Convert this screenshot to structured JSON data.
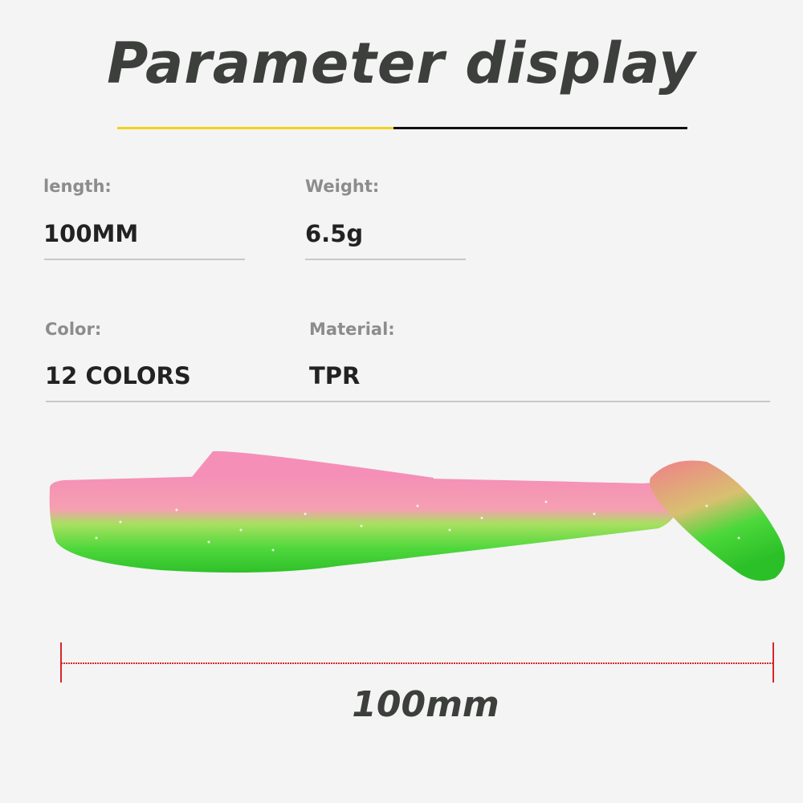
{
  "title": "Parameter display",
  "accent_colors": {
    "yellow": "#f2d21b",
    "black": "#111111",
    "measure_red": "#d8262b"
  },
  "params": [
    {
      "label": "length:",
      "value": "100MM"
    },
    {
      "label": "Weight:",
      "value": "6.5g"
    },
    {
      "label": "Color:",
      "value": "12 COLORS"
    },
    {
      "label": "Material:",
      "value": "TPR"
    }
  ],
  "product": {
    "colors": [
      "#f58fb8",
      "#3fd23a"
    ]
  },
  "measurement": {
    "label": "100mm"
  }
}
